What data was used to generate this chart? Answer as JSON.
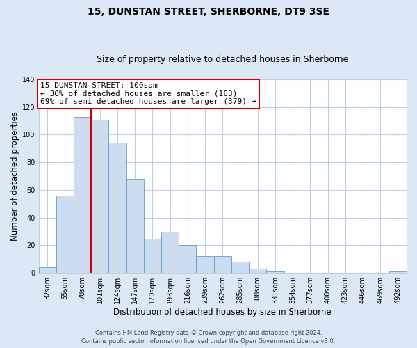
{
  "title": "15, DUNSTAN STREET, SHERBORNE, DT9 3SE",
  "subtitle": "Size of property relative to detached houses in Sherborne",
  "xlabel": "Distribution of detached houses by size in Sherborne",
  "ylabel": "Number of detached properties",
  "bar_labels": [
    "32sqm",
    "55sqm",
    "78sqm",
    "101sqm",
    "124sqm",
    "147sqm",
    "170sqm",
    "193sqm",
    "216sqm",
    "239sqm",
    "262sqm",
    "285sqm",
    "308sqm",
    "331sqm",
    "354sqm",
    "377sqm",
    "400sqm",
    "423sqm",
    "446sqm",
    "469sqm",
    "492sqm"
  ],
  "bar_values": [
    4,
    56,
    113,
    111,
    94,
    68,
    25,
    30,
    20,
    12,
    12,
    8,
    3,
    1,
    0,
    0,
    0,
    0,
    0,
    0,
    1
  ],
  "bar_color": "#ccddf0",
  "bar_edge_color": "#6699cc",
  "ylim": [
    0,
    140
  ],
  "yticks": [
    0,
    20,
    40,
    60,
    80,
    100,
    120,
    140
  ],
  "vline_x": 2.5,
  "vline_color": "#cc0000",
  "annotation_title": "15 DUNSTAN STREET: 100sqm",
  "annotation_line1": "← 30% of detached houses are smaller (163)",
  "annotation_line2": "69% of semi-detached houses are larger (379) →",
  "annotation_box_facecolor": "#ffffff",
  "annotation_box_edgecolor": "#cc0000",
  "footer1": "Contains HM Land Registry data © Crown copyright and database right 2024.",
  "footer2": "Contains public sector information licensed under the Open Government Licence v3.0.",
  "fig_bg_color": "#dce8f5",
  "plot_bg_color": "#ffffff",
  "grid_color": "#c0cfe0",
  "title_fontsize": 10,
  "subtitle_fontsize": 9,
  "axis_label_fontsize": 8.5,
  "tick_fontsize": 7,
  "footer_fontsize": 6,
  "ann_fontsize": 8
}
